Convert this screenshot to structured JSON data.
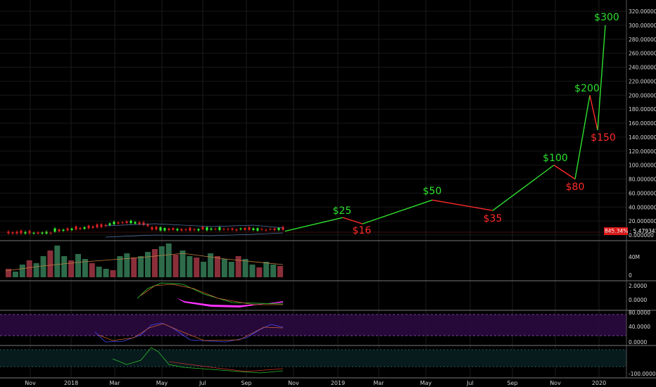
{
  "chart_data": {
    "type": "line",
    "price_axis": {
      "ticks": [
        "320.000000",
        "300.000000",
        "280.000000",
        "260.000000",
        "240.000000",
        "220.000000",
        "200.000000",
        "180.000000",
        "160.000000",
        "140.000000",
        "120.000000",
        "100.000000",
        "80.000000",
        "60.000000",
        "40.000000",
        "20.000000",
        "0.000000"
      ],
      "range": [
        0,
        320
      ]
    },
    "price_badge": "845.34% · 5.479341",
    "volume_axis": {
      "ticks": [
        "40M",
        "0"
      ]
    },
    "macd_axis": {
      "ticks": [
        "2.0000",
        "0.0000",
        "-2.0000"
      ]
    },
    "rsi_axis": {
      "ticks": [
        "80.0000",
        "40.0000",
        "0.0000"
      ]
    },
    "williams_axis": {
      "ticks": [
        "-100.0000"
      ]
    },
    "x_tick_labels": [
      "Nov",
      "2018",
      "Mar",
      "May",
      "Jul",
      "Sep",
      "Nov",
      "2019",
      "Mar",
      "May",
      "Jul",
      "Sep",
      "Nov",
      "2020"
    ],
    "projection": {
      "points": [
        {
          "label": "",
          "value": 5.5,
          "date": "2018-10"
        },
        {
          "label": "$25",
          "value": 25,
          "date": "2019-01"
        },
        {
          "label": "$16",
          "value": 16,
          "date": "2019-02"
        },
        {
          "label": "$50",
          "value": 50,
          "date": "2019-05"
        },
        {
          "label": "$35",
          "value": 35,
          "date": "2019-08"
        },
        {
          "label": "$100",
          "value": 100,
          "date": "2019-11"
        },
        {
          "label": "$80",
          "value": 80,
          "date": "2019-12"
        },
        {
          "label": "$200",
          "value": 200,
          "date": "2019-12"
        },
        {
          "label": "$150",
          "value": 150,
          "date": "2020-01"
        },
        {
          "label": "$300",
          "value": 300,
          "date": "2020-01"
        }
      ],
      "up_color": "#2ee02e",
      "down_color": "#ff2a2a"
    },
    "colors": {
      "up": "#26a69a",
      "green": "#33ff33",
      "red": "#e02020",
      "magenta": "#ff33ff",
      "rsi_band": "#2a0a3f"
    }
  }
}
